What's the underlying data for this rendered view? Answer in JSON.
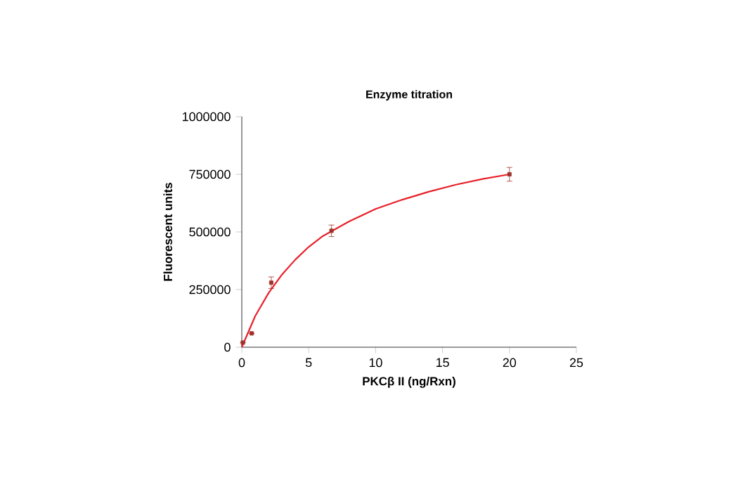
{
  "chart_data": {
    "type": "line",
    "title": "Enzyme titration",
    "xlabel": "PKCβ II (ng/Rxn)",
    "ylabel": "Fluorescent units",
    "xlim": [
      0,
      25
    ],
    "ylim": [
      0,
      1000000
    ],
    "xticks": [
      0,
      5,
      10,
      15,
      20,
      25
    ],
    "yticks": [
      0,
      250000,
      500000,
      750000,
      1000000
    ],
    "grid": false,
    "series": [
      {
        "color": "#e8202a",
        "marker": "none",
        "line_style": "solid",
        "x": [
          0,
          1,
          2,
          3,
          4,
          5,
          6,
          8,
          10,
          12,
          14,
          16,
          18,
          20
        ],
        "values": [
          0,
          135000,
          235000,
          315000,
          380000,
          435000,
          480000,
          545000,
          600000,
          640000,
          675000,
          705000,
          730000,
          750000
        ]
      },
      {
        "type": "scatter",
        "color": "#a0322a",
        "marker": "square",
        "x": [
          0.08,
          0.74,
          2.2,
          6.7,
          20
        ],
        "values": [
          20000,
          60000,
          280000,
          505000,
          750000
        ],
        "errors": [
          null,
          null,
          25000,
          25000,
          30000
        ]
      }
    ]
  }
}
